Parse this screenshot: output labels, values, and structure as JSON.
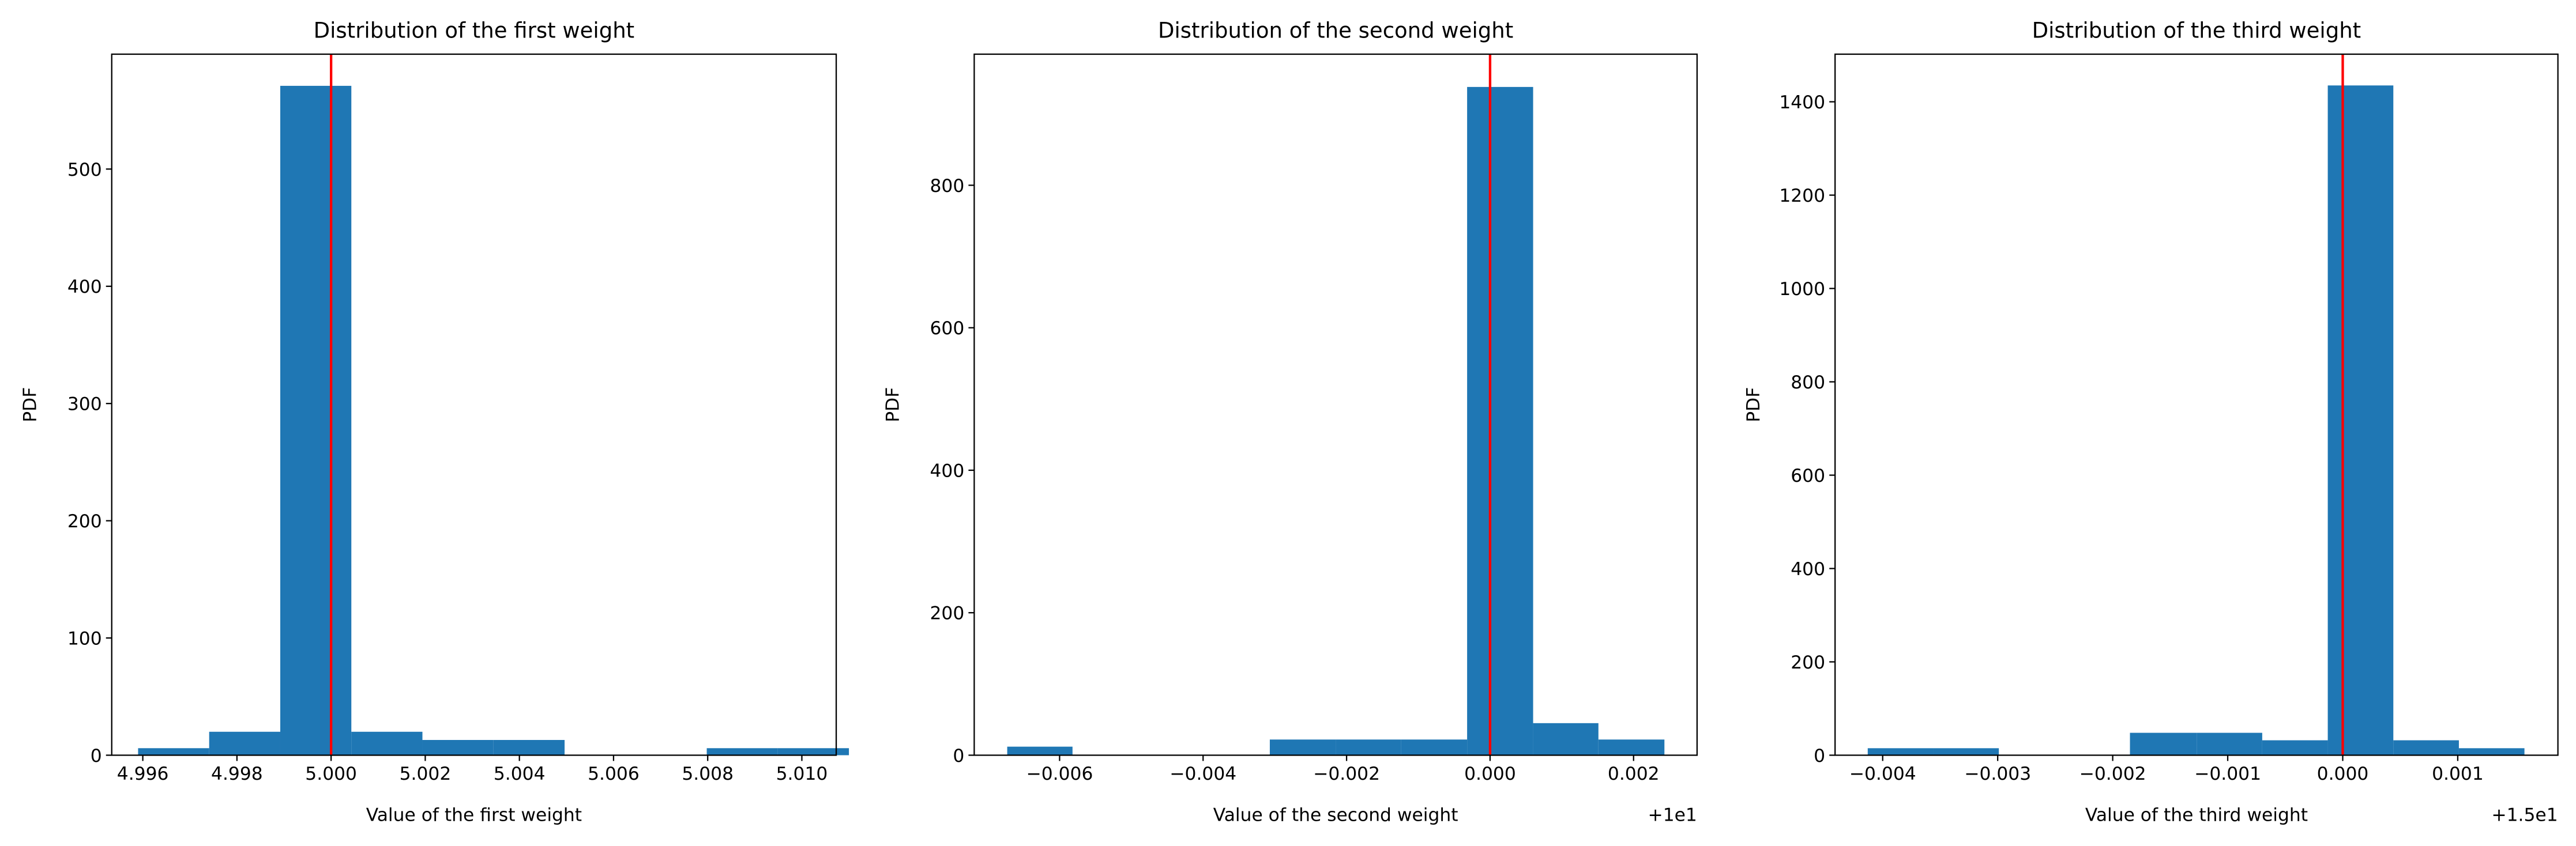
{
  "chart_data": [
    {
      "type": "histogram",
      "title": "Distribution of the first weight",
      "xlabel": "Value of the first weight",
      "ylabel": "PDF",
      "bins": [
        4.9959,
        4.99741,
        4.99892,
        5.00043,
        5.00194,
        5.00345,
        5.00496,
        5.00647,
        5.00798,
        5.00949,
        5.011
      ],
      "values": [
        6,
        20,
        571,
        20,
        13,
        13,
        0,
        0,
        6,
        6
      ],
      "color": "#1f77b4",
      "vline": 5,
      "vline_color": "#ff0000",
      "xlim": [
        4.99534,
        5.01073
      ],
      "ylim": [
        0,
        598
      ],
      "xticks": [
        4.996,
        4.998,
        {
          "value": 5,
          "label": "5.000"
        },
        5.002,
        5.004,
        5.006,
        5.008,
        {
          "value": 5.01,
          "label": "5.010"
        }
      ],
      "yticks": [
        0,
        100,
        200,
        300,
        400,
        500
      ]
    },
    {
      "type": "histogram",
      "title": "Distribution of the second weight",
      "xlabel": "Value of the second weight",
      "ylabel": "PDF",
      "x_offset_label": "+1e1",
      "bins": [
        9.99327,
        9.99418,
        9.9951,
        9.99602,
        9.99693,
        9.99785,
        9.99876,
        9.99968,
        10.0006,
        10.00151,
        10.00243
      ],
      "values": [
        12,
        0,
        0,
        0,
        22,
        22,
        22,
        938,
        45,
        22
      ],
      "color": "#1f77b4",
      "vline": 10,
      "vline_color": "#ff0000",
      "xlim": [
        9.99281,
        10.002885
      ],
      "ylim": [
        0,
        984
      ],
      "xticks": [
        {
          "value": 9.994,
          "label": "−0.006"
        },
        {
          "value": 9.996,
          "label": "−0.004"
        },
        {
          "value": 9.998,
          "label": "−0.002"
        },
        {
          "value": 10,
          "label": "0.000"
        },
        {
          "value": 10.002,
          "label": "0.002"
        }
      ],
      "yticks": [
        0,
        200,
        400,
        600,
        800
      ]
    },
    {
      "type": "histogram",
      "title": "Distribution of the third weight",
      "xlabel": "Value of the third weight",
      "ylabel": "PDF",
      "x_offset_label": "+1.5e1",
      "bins": [
        14.99587,
        14.99644,
        14.99701,
        14.99758,
        14.99815,
        14.99873,
        14.9993,
        14.99987,
        15.00044,
        15.00101,
        15.00158
      ],
      "values": [
        15,
        15,
        0,
        0,
        48,
        48,
        32,
        1435,
        32,
        15
      ],
      "color": "#1f77b4",
      "vline": 15,
      "vline_color": "#ff0000",
      "xlim": [
        14.995586,
        15.001871
      ],
      "ylim": [
        0,
        1502
      ],
      "xticks": [
        {
          "value": 14.996,
          "label": "−0.004"
        },
        {
          "value": 14.997,
          "label": "−0.003"
        },
        {
          "value": 14.998,
          "label": "−0.002"
        },
        {
          "value": 14.999,
          "label": "−0.001"
        },
        {
          "value": 15,
          "label": "0.000"
        },
        {
          "value": 15.001,
          "label": "0.001"
        }
      ],
      "yticks": [
        0,
        200,
        400,
        600,
        800,
        1000,
        1200,
        1400
      ]
    }
  ]
}
